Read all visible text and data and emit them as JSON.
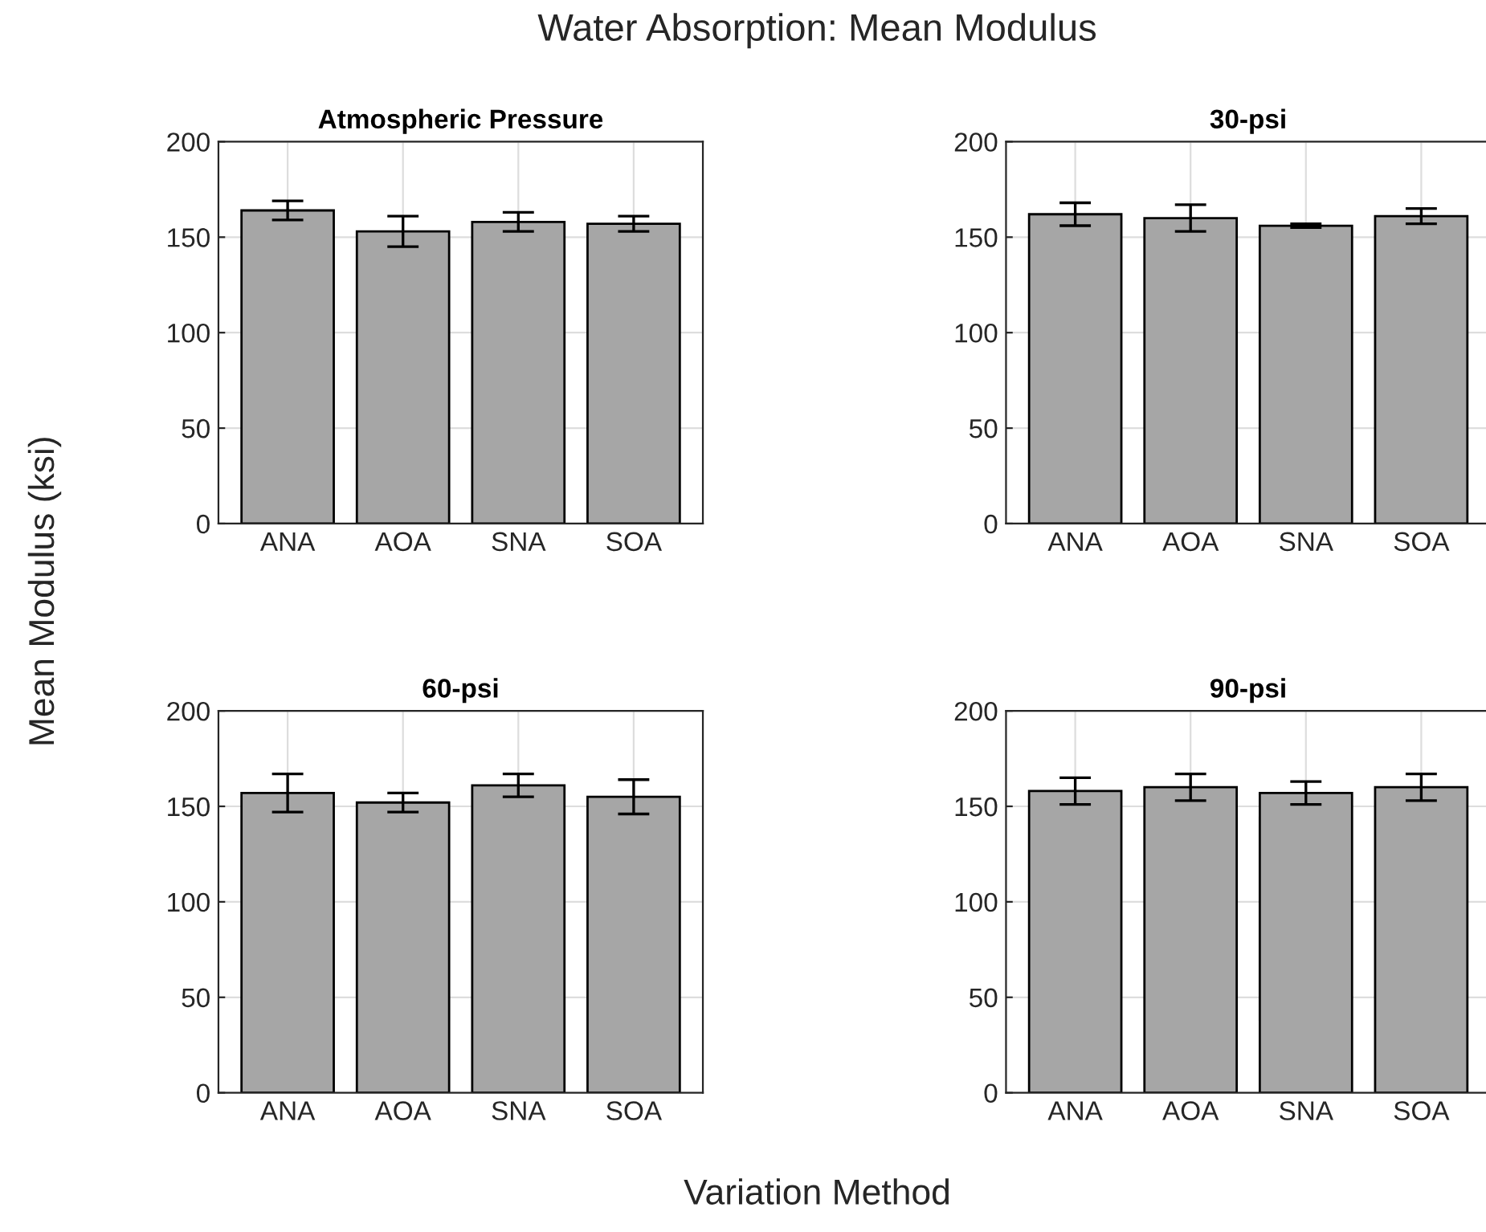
{
  "chart_data": [
    {
      "type": "bar",
      "title": "Atmospheric Pressure",
      "annotations": [
        "Water Absorption: Mean Modulus",
        "Mean Modulus (ksi)",
        "Variation Method"
      ],
      "categories": [
        "ANA",
        "AOA",
        "SNA",
        "SOA"
      ],
      "values": [
        164,
        153,
        158,
        157
      ],
      "errors": [
        5,
        8,
        5,
        4
      ],
      "color": "#a6a6a6",
      "ylim": [
        0,
        200
      ],
      "yticks": [
        0,
        50,
        100,
        150,
        200
      ],
      "grid": true
    },
    {
      "type": "bar",
      "title": "30-psi",
      "categories": [
        "ANA",
        "AOA",
        "SNA",
        "SOA"
      ],
      "values": [
        162,
        160,
        156,
        161
      ],
      "errors": [
        6,
        7,
        1,
        4
      ],
      "color": "#a6a6a6",
      "ylim": [
        0,
        200
      ],
      "yticks": [
        0,
        50,
        100,
        150,
        200
      ],
      "grid": true
    },
    {
      "type": "bar",
      "title": "60-psi",
      "categories": [
        "ANA",
        "AOA",
        "SNA",
        "SOA"
      ],
      "values": [
        157,
        152,
        161,
        155
      ],
      "errors": [
        10,
        5,
        6,
        9
      ],
      "color": "#a6a6a6",
      "ylim": [
        0,
        200
      ],
      "yticks": [
        0,
        50,
        100,
        150,
        200
      ],
      "grid": true
    },
    {
      "type": "bar",
      "title": "90-psi",
      "categories": [
        "ANA",
        "AOA",
        "SNA",
        "SOA"
      ],
      "values": [
        158,
        160,
        157,
        160
      ],
      "errors": [
        7,
        7,
        6,
        7
      ],
      "color": "#a6a6a6",
      "ylim": [
        0,
        200
      ],
      "yticks": [
        0,
        50,
        100,
        150,
        200
      ],
      "grid": true
    }
  ]
}
